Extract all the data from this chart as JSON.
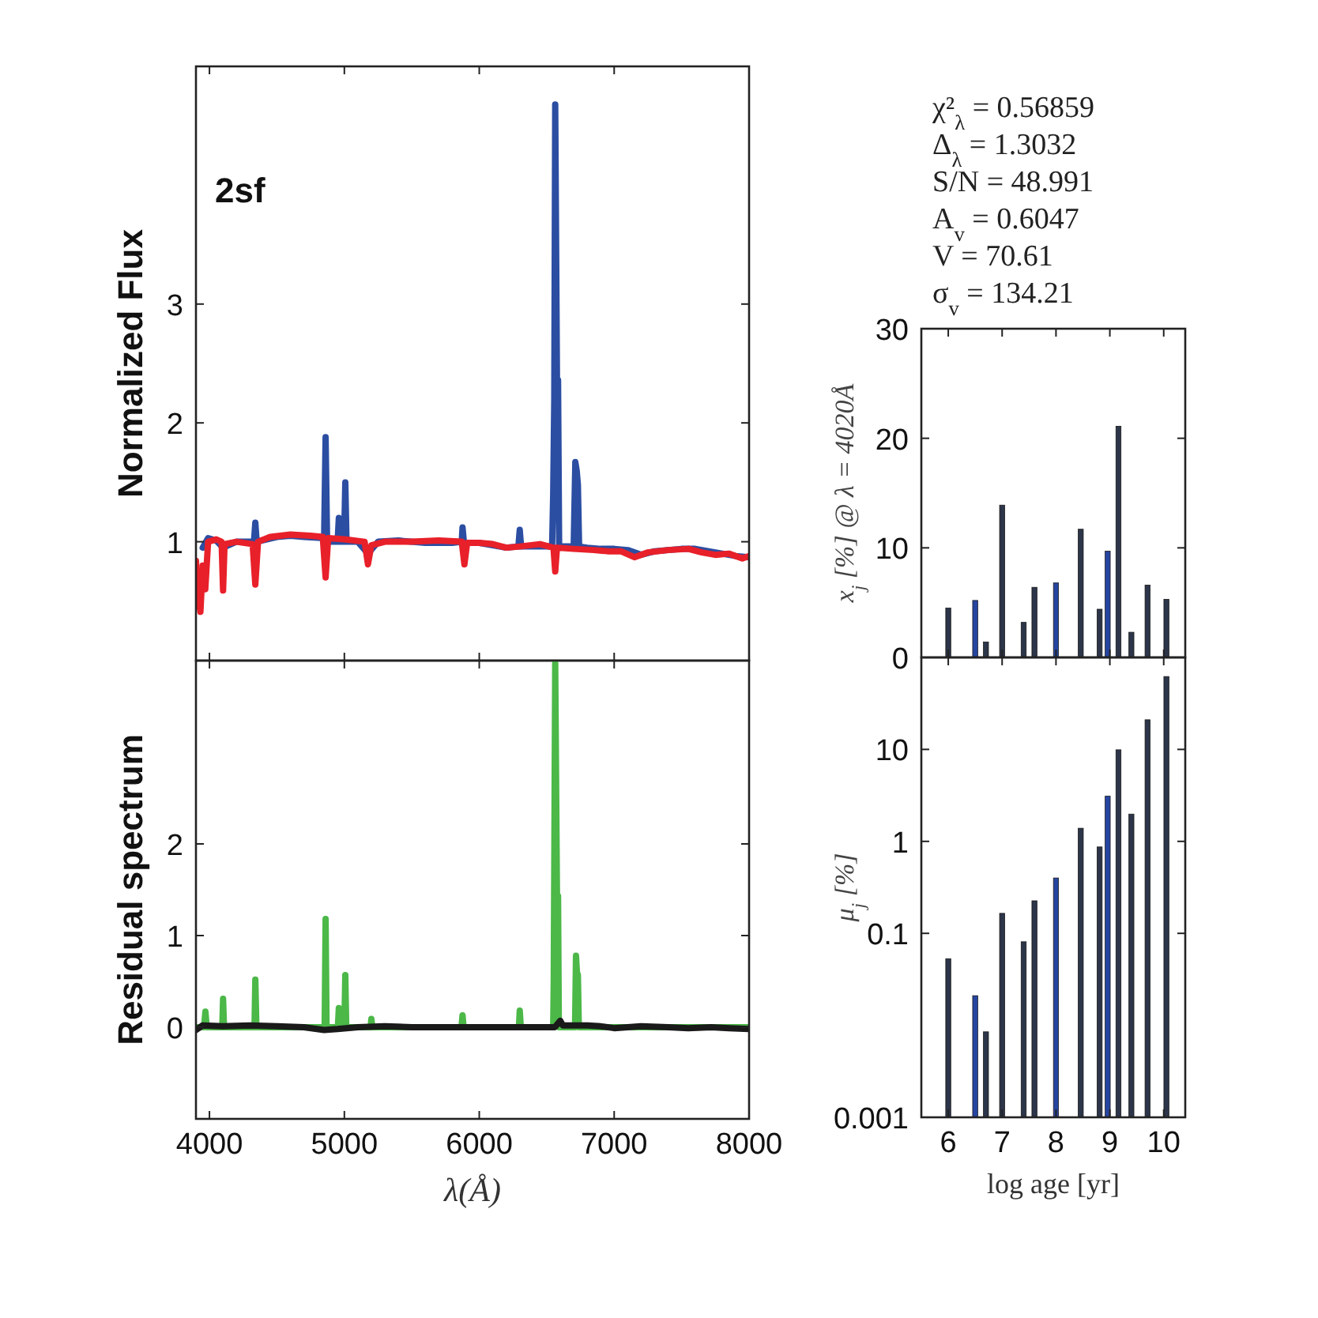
{
  "chart_data": [
    {
      "type": "line",
      "ylabel": "Normalized Flux",
      "annotations": [
        "2sf"
      ],
      "xlim": [
        3900,
        8000
      ],
      "xticks": [
        4000,
        5000,
        6000,
        7000,
        8000
      ],
      "ylim": [
        0,
        5
      ],
      "yticks": [
        1,
        2,
        3
      ],
      "tick_labels": "y",
      "series": [
        {
          "color": "#2b4ea2",
          "x": [
            3950,
            3990,
            4050,
            4100,
            4200,
            4330,
            4340,
            4350,
            4500,
            4600,
            4700,
            4850,
            4861,
            4872,
            4950,
            4959,
            4968,
            4998,
            5007,
            5016,
            5100,
            5175,
            5250,
            5400,
            5600,
            5800,
            5870,
            5876,
            5890,
            5900,
            6000,
            6100,
            6200,
            6290,
            6300,
            6310,
            6400,
            6540,
            6548,
            6556,
            6563,
            6576,
            6584,
            6592,
            6700,
            6712,
            6722,
            6731,
            6740,
            6800,
            6900,
            7000,
            7100,
            7200,
            7300,
            7400,
            7500,
            7600,
            7800,
            7900,
            8000
          ],
          "values": [
            0.95,
            1.03,
            1.01,
            0.95,
            1.0,
            1.0,
            1.16,
            1.0,
            1.04,
            1.05,
            1.04,
            1.03,
            1.88,
            1.0,
            1.0,
            1.2,
            1.0,
            1.0,
            1.5,
            1.0,
            1.0,
            0.9,
            1.0,
            1.01,
            0.99,
            0.99,
            1.0,
            1.12,
            0.95,
            0.99,
            0.99,
            0.97,
            0.95,
            0.96,
            1.1,
            0.96,
            0.96,
            0.96,
            1.4,
            2.2,
            4.68,
            2.36,
            2.36,
            0.96,
            0.96,
            1.67,
            1.6,
            1.48,
            0.96,
            0.95,
            0.94,
            0.94,
            0.93,
            0.89,
            0.92,
            0.93,
            0.94,
            0.94,
            0.9,
            0.88,
            0.87
          ]
        },
        {
          "color": "#e8202a",
          "x": [
            3900,
            3915,
            3933,
            3950,
            3969,
            3990,
            4050,
            4090,
            4101,
            4112,
            4200,
            4320,
            4340,
            4360,
            4450,
            4600,
            4750,
            4840,
            4861,
            4880,
            5000,
            5150,
            5175,
            5200,
            5300,
            5500,
            5700,
            5870,
            5890,
            5910,
            6000,
            6100,
            6200,
            6300,
            6450,
            6550,
            6563,
            6576,
            6700,
            6850,
            6950,
            7050,
            7150,
            7250,
            7400,
            7550,
            7650,
            7750,
            7850,
            7950,
            8000
          ],
          "values": [
            0.84,
            0.55,
            0.41,
            0.8,
            0.6,
            1.0,
            1.02,
            1.0,
            0.59,
            0.98,
            1.0,
            0.98,
            0.64,
            1.0,
            1.04,
            1.06,
            1.05,
            1.04,
            0.7,
            1.03,
            1.02,
            1.0,
            0.81,
            0.97,
            1.0,
            1.0,
            1.01,
            1.0,
            0.81,
            0.99,
            0.99,
            0.98,
            0.95,
            0.96,
            0.98,
            0.95,
            0.75,
            0.95,
            0.94,
            0.93,
            0.92,
            0.92,
            0.87,
            0.91,
            0.93,
            0.94,
            0.91,
            0.89,
            0.9,
            0.86,
            0.88
          ]
        }
      ]
    },
    {
      "type": "line",
      "ylabel": "Residual spectrum",
      "xlabel": "λ(Å)",
      "xlim": [
        3900,
        8000
      ],
      "xticks": [
        4000,
        5000,
        6000,
        7000,
        8000
      ],
      "ylim": [
        -1,
        4
      ],
      "yticks": [
        0,
        1,
        2
      ],
      "series": [
        {
          "color": "#4bb848",
          "x": [
            3900,
            3960,
            3970,
            3980,
            4095,
            4101,
            4108,
            4334,
            4340,
            4348,
            4854,
            4861,
            4868,
            4952,
            4959,
            4966,
            5000,
            5007,
            5014,
            5195,
            5200,
            5208,
            5868,
            5876,
            5884,
            6294,
            6300,
            6308,
            6548,
            6552,
            6563,
            6576,
            6584,
            6590,
            6710,
            6717,
            6724,
            6731,
            6738,
            8000
          ],
          "values": [
            0,
            0,
            0.17,
            0,
            0,
            0.31,
            0,
            0,
            0.52,
            0,
            0,
            1.18,
            0,
            0,
            0.21,
            0,
            0,
            0.57,
            0,
            0,
            0.09,
            0,
            0,
            0.13,
            0,
            0,
            0.18,
            0,
            0,
            0.5,
            3.97,
            1.43,
            1.43,
            0,
            0,
            0.78,
            0.6,
            0.57,
            0,
            0
          ]
        },
        {
          "color": "#1a1a1a",
          "x": [
            3900,
            3950,
            4100,
            4300,
            4500,
            4700,
            4850,
            4950,
            5100,
            5300,
            5500,
            5700,
            5800,
            5850,
            6100,
            6300,
            6500,
            6560,
            6600,
            6620,
            6800,
            6900,
            7000,
            7200,
            7400,
            7550,
            7600,
            7720,
            7850,
            8000
          ],
          "values": [
            -0.03,
            0.02,
            0.01,
            0.02,
            0.01,
            0,
            -0.03,
            -0.02,
            0,
            0.01,
            0,
            0,
            0,
            null,
            0,
            0,
            0,
            0,
            0.07,
            0.02,
            0.02,
            0.01,
            -0.01,
            0.01,
            0,
            -0.01,
            null,
            0,
            -0.01,
            -0.02
          ]
        }
      ]
    },
    {
      "type": "bar",
      "ylabel": "x$_{j}$ [%] @ λ = 4020Å",
      "annotations": [
        "χ²$_{λ}$ = 0.56859",
        "Δ$_{λ}$ = 1.3032",
        "S/N = 48.991",
        "A$_{v}$ = 0.6047",
        "V = 70.61",
        "σ$_{v}$ = 134.21"
      ],
      "xlim": [
        5.5,
        10.4
      ],
      "xticks": [
        6,
        7,
        8,
        9,
        10
      ],
      "ylim": [
        0,
        30
      ],
      "yticks": [
        0,
        10,
        20,
        30
      ],
      "tick_labels": "y",
      "x": [
        6.0,
        6.5,
        6.7,
        7.0,
        7.4,
        7.6,
        8.0,
        8.46,
        8.81,
        8.96,
        9.16,
        9.4,
        9.7,
        10.05
      ],
      "values": [
        4.5,
        5.2,
        1.4,
        13.9,
        3.2,
        6.4,
        6.8,
        11.7,
        4.4,
        9.7,
        21.1,
        2.3,
        6.6,
        5.3
      ],
      "colors": [
        "#2c3549",
        "#2645a0",
        "#2c3549",
        "#2c3549",
        "#2c3549",
        "#2c3549",
        "#2645a0",
        "#2c3549",
        "#2c3549",
        "#2645a0",
        "#2c3549",
        "#2c3549",
        "#2c3549",
        "#2c3549"
      ]
    },
    {
      "type": "bar",
      "ylabel": "μ$_{j}$ [%]",
      "xlabel": "log age [yr]",
      "log": true,
      "xlim": [
        5.5,
        10.4
      ],
      "xticks": [
        6,
        7,
        8,
        9,
        10
      ],
      "ylim": [
        0.001,
        100
      ],
      "yticks": [
        0.001,
        0.1,
        1,
        10
      ],
      "x": [
        6.0,
        6.5,
        6.7,
        7.0,
        7.4,
        7.6,
        8.0,
        8.46,
        8.81,
        8.96,
        9.16,
        9.4,
        9.7,
        10.05
      ],
      "values": [
        0.053,
        0.021,
        0.0085,
        0.165,
        0.081,
        0.226,
        0.4,
        1.39,
        0.87,
        3.1,
        9.9,
        1.98,
        21,
        62
      ],
      "colors": [
        "#2c3549",
        "#2645a0",
        "#2c3549",
        "#2c3549",
        "#2c3549",
        "#2c3549",
        "#2645a0",
        "#2c3549",
        "#2c3549",
        "#2645a0",
        "#2c3549",
        "#2c3549",
        "#2c3549",
        "#2c3549"
      ]
    }
  ]
}
